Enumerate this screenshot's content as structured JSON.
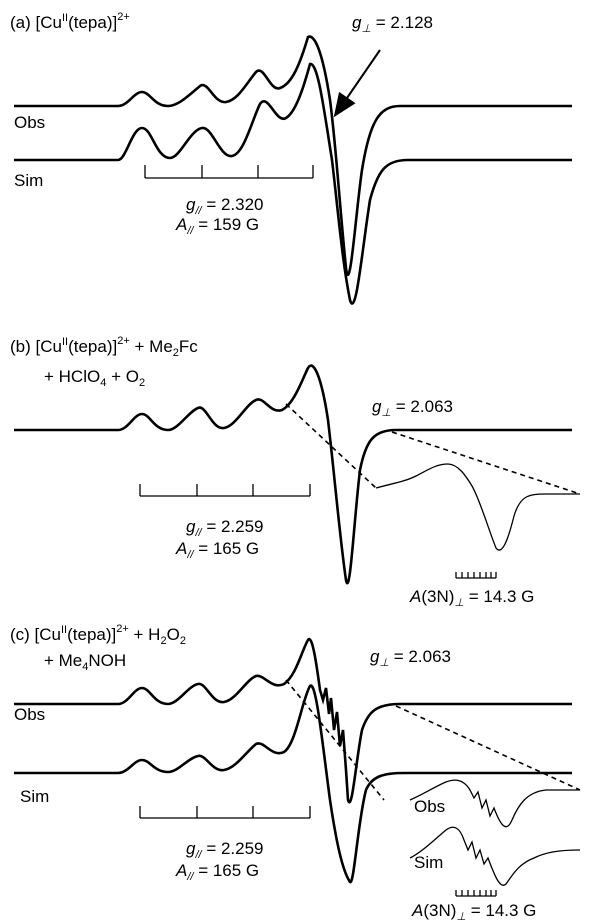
{
  "panels": [
    {
      "id": "a",
      "label": "(a) [Cu",
      "label_sup": "II",
      "label_rest": "(tepa)]",
      "label_charge": "2+",
      "line2": "",
      "g_perp_label": "g",
      "g_perp_sub": "⊥",
      "g_perp_value": " = 2.128",
      "g_par_label": "g",
      "g_par_sub": "//",
      "g_par_value": " = 2.320",
      "a_par_label": "A",
      "a_par_sub": "//",
      "a_par_value": " = 159 G",
      "obs_label": "Obs",
      "sim_label": "Sim"
    },
    {
      "id": "b",
      "label": "(b) [Cu",
      "label_sup": "II",
      "label_rest": "(tepa)]",
      "label_charge": "2+",
      "label_tail": " + Me",
      "label_tail_sub": "2",
      "label_tail_end": "Fc",
      "line2": "+ HClO",
      "line2_sub": "4",
      "line2_mid": " + O",
      "line2_sub2": "2",
      "g_perp_label": "g",
      "g_perp_sub": "⊥",
      "g_perp_value": " = 2.063",
      "g_par_label": "g",
      "g_par_sub": "//",
      "g_par_value": " = 2.259",
      "a_par_label": "A",
      "a_par_sub": "//",
      "a_par_value": " = 165 G",
      "a3n_label": "A",
      "a3n_mid": "(3N)",
      "a3n_sub": "⊥",
      "a3n_value": " = 14.3 G"
    },
    {
      "id": "c",
      "label": "(c) [Cu",
      "label_sup": "II",
      "label_rest": "(tepa)]",
      "label_charge": "2+",
      "label_tail": " + H",
      "label_tail_sub": "2",
      "label_tail_end": "O",
      "label_tail_sub2": "2",
      "line2": "+ Me",
      "line2_sub": "4",
      "line2_mid": "NOH",
      "g_perp_label": "g",
      "g_perp_sub": "⊥",
      "g_perp_value": " = 2.063",
      "g_par_label": "g",
      "g_par_sub": "//",
      "g_par_value": " = 2.259",
      "a_par_label": "A",
      "a_par_sub": "//",
      "a_par_value": " = 165 G",
      "obs_label": "Obs",
      "sim_label": "Sim",
      "inset_obs_label": "Obs",
      "inset_sim_label": "Sim",
      "a3n_label": "A",
      "a3n_mid": "(3N)",
      "a3n_sub": "⊥",
      "a3n_value": " = 14.3 G"
    }
  ]
}
